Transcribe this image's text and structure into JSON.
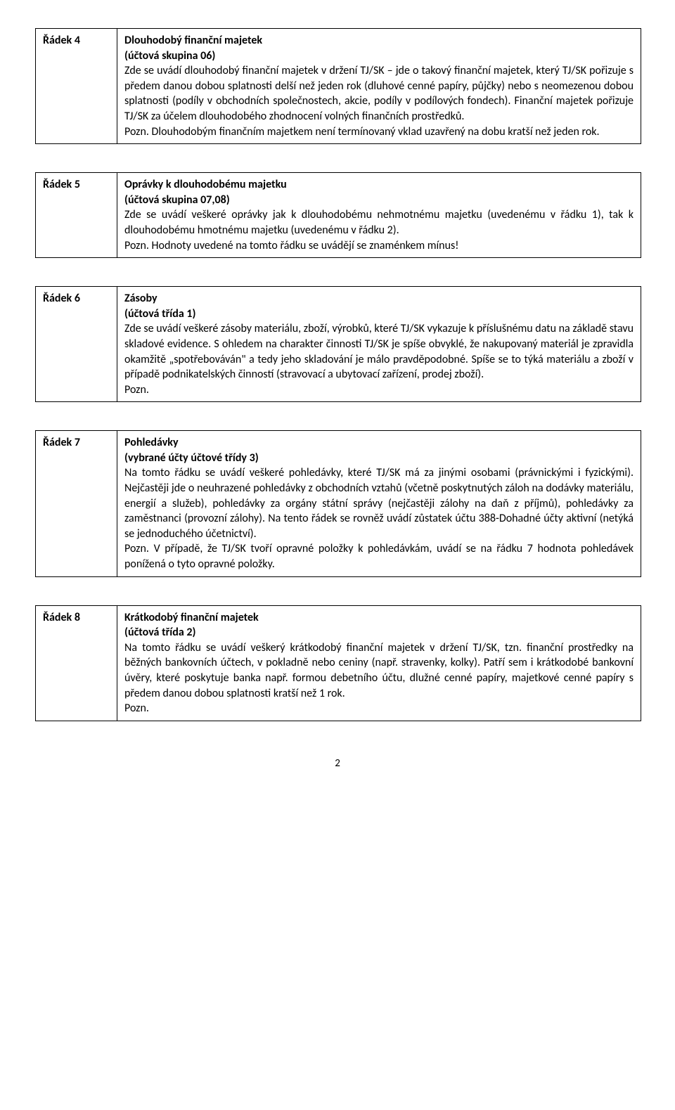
{
  "sections": [
    {
      "label": "Řádek 4",
      "title": "Dlouhodobý finanční majetek",
      "sub": "(účtová skupina 06)",
      "body": "Zde se uvádí dlouhodobý finanční majetek v držení TJ/SK – jde o takový finanční majetek, který TJ/SK pořizuje s předem danou dobou splatnosti delší než jeden rok (dluhové cenné papíry, půjčky) nebo s neomezenou dobou splatnosti (podíly v obchodních společnostech, akcie, podíly v podílových fondech). Finanční majetek pořizuje TJ/SK za účelem dlouhodobého zhodnocení volných finančních prostředků.",
      "note": "Pozn. Dlouhodobým finančním majetkem není termínovaný vklad uzavřený na dobu kratší než jeden rok."
    },
    {
      "label": "Řádek 5",
      "title": "Oprávky k dlouhodobému majetku",
      "sub": "(účtová skupina 07,08)",
      "body": "Zde se uvádí veškeré oprávky jak k dlouhodobému nehmotnému majetku (uvedenému v řádku 1), tak k dlouhodobému hmotnému majetku (uvedenému v řádku 2).",
      "note": "Pozn. Hodnoty uvedené na tomto řádku se uvádějí se znaménkem mínus!"
    },
    {
      "label": "Řádek 6",
      "title": "Zásoby",
      "sub": "(účtová třída 1)",
      "body": "Zde se uvádí veškeré zásoby materiálu, zboží, výrobků, které TJ/SK vykazuje k příslušnému datu na základě stavu skladové evidence. S ohledem na charakter činnosti TJ/SK je spíše obvyklé, že nakupovaný materiál je zpravidla okamžitě „spotřebováván\" a tedy jeho skladování je málo pravděpodobné. Spíše se to týká materiálu a zboží v případě podnikatelských činností (stravovací a ubytovací zařízení, prodej zboží).",
      "note": "Pozn."
    },
    {
      "label": "Řádek 7",
      "title": "Pohledávky",
      "sub": "(vybrané účty účtové třídy 3)",
      "body": "Na tomto řádku se uvádí veškeré pohledávky, které TJ/SK má za jinými osobami (právnickými i fyzickými). Nejčastěji jde o neuhrazené pohledávky z obchodních vztahů (včetně poskytnutých záloh na dodávky materiálu, energií a služeb), pohledávky za orgány státní správy (nejčastěji zálohy na daň z příjmů), pohledávky za zaměstnanci (provozní zálohy). Na tento řádek se rovněž uvádí zůstatek účtu 388-Dohadné účty aktivní (netýká se jednoduchého účetnictví).",
      "note": "Pozn. V případě, že TJ/SK tvoří opravné položky k pohledávkám, uvádí se na řádku 7 hodnota pohledávek ponížená o tyto opravné položky."
    },
    {
      "label": "Řádek 8",
      "title": "Krátkodobý finanční majetek",
      "sub": "(účtová třída 2)",
      "body": "Na tomto řádku se uvádí veškerý krátkodobý finanční majetek v držení TJ/SK, tzn. finanční prostředky na běžných bankovních účtech, v pokladně nebo ceniny (např. stravenky, kolky). Patří sem i krátkodobé bankovní úvěry, které poskytuje banka např. formou debetního účtu, dlužné cenné papíry, majetkové cenné papíry s předem danou dobou splatnosti kratší než 1 rok.",
      "note": "Pozn."
    }
  ],
  "pageNumber": "2"
}
